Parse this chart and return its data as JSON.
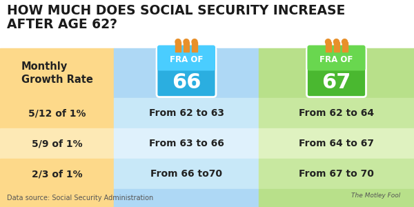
{
  "title_line1": "HOW MUCH DOES SOCIAL SECURITY INCREASE",
  "title_line2": "AFTER AGE 62?",
  "title_color": "#1a1a1a",
  "title_fontsize": 13.5,
  "bg_color": "#ffffff",
  "col1_header": "Monthly\nGrowth Rate",
  "col1_bg": "#fdd98a",
  "col2_bg": "#aed8f5",
  "col3_bg": "#b8e08a",
  "col2_icon_color": "#2baee0",
  "col3_icon_color": "#4ab830",
  "icon_tab_color": "#e8902a",
  "rows": [
    [
      "5/12 of 1%",
      "From 62 to 63",
      "From 62 to 64"
    ],
    [
      "5/9 of 1%",
      "From 63 to 66",
      "From 64 to 67"
    ],
    [
      "2/3 of 1%",
      "From 66 to70",
      "From 67 to 70"
    ]
  ],
  "row_bg_col1_odd": "#fdd98a",
  "row_bg_col1_even": "#fde9b5",
  "row_bg_col2_odd": "#c8e8f8",
  "row_bg_col2_even": "#dff1fc",
  "row_bg_col3_odd": "#c8e8a0",
  "row_bg_col3_even": "#dff2c0",
  "footer": "Data source: Social Security Administration",
  "footer_color": "#555555",
  "footer_fontsize": 7,
  "text_color": "#222222",
  "row_text_fontsize": 10,
  "header_text_color": "#ffffff"
}
